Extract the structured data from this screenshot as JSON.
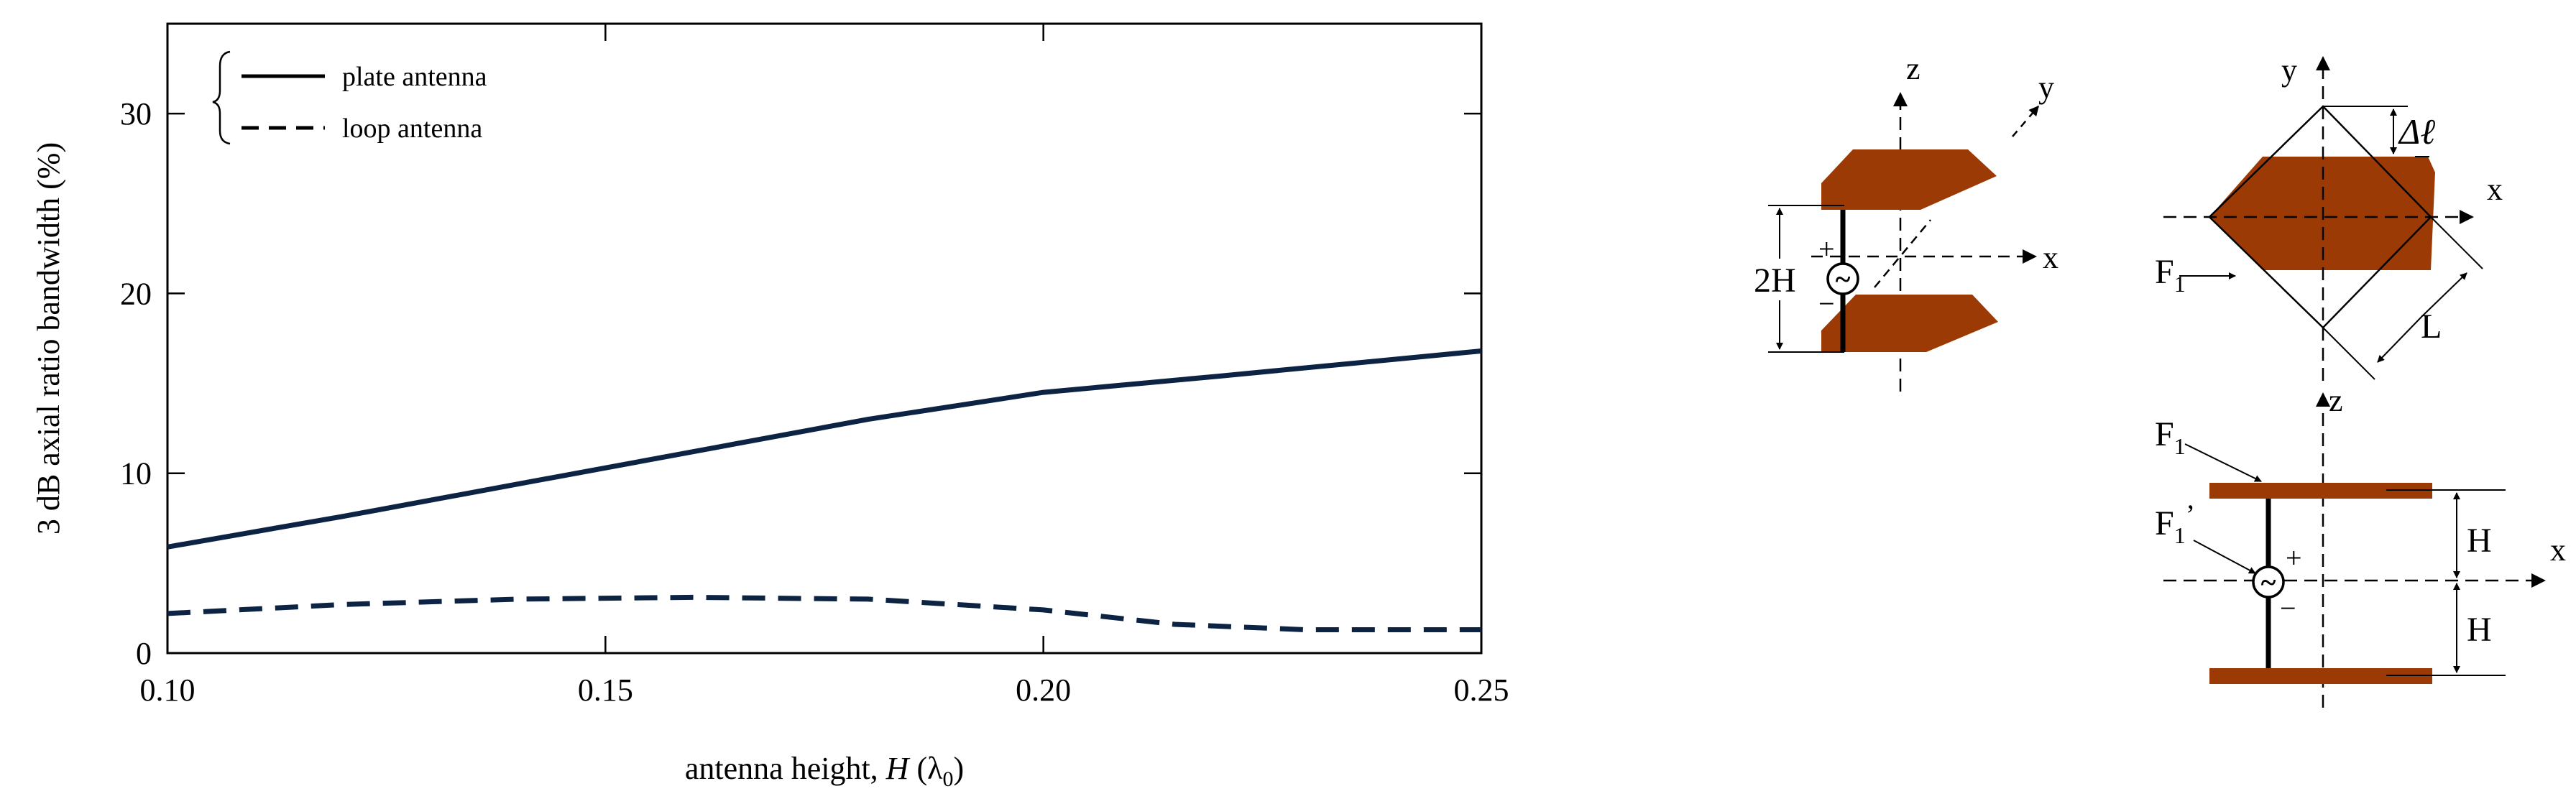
{
  "chart_data": {
    "type": "line",
    "title": "",
    "xlabel": "antenna height, ",
    "xlabel_var": "H",
    "xlabel_unit_open": " (λ",
    "xlabel_unit_sub": "0",
    "xlabel_unit_close": ")",
    "ylabel": "3 dB axial ratio bandwidth (%)",
    "xlim": [
      0.1,
      0.25
    ],
    "ylim": [
      0,
      35
    ],
    "x_ticks": [
      0.1,
      0.15,
      0.2,
      0.25
    ],
    "x_tick_labels": [
      "0.10",
      "0.15",
      "0.20",
      "0.25"
    ],
    "y_ticks": [
      0,
      10,
      20,
      30
    ],
    "y_tick_labels": [
      "0",
      "10",
      "20",
      "30"
    ],
    "legend_position": "top-left",
    "series": [
      {
        "name": "plate antenna",
        "style": "solid",
        "color": "#0d2344",
        "x": [
          0.1,
          0.12,
          0.14,
          0.16,
          0.18,
          0.2,
          0.22,
          0.25
        ],
        "y": [
          5.9,
          7.6,
          9.4,
          11.2,
          13.0,
          14.5,
          15.4,
          16.8
        ]
      },
      {
        "name": "loop antenna",
        "style": "dashed",
        "color": "#0d2344",
        "x": [
          0.1,
          0.12,
          0.14,
          0.16,
          0.18,
          0.2,
          0.215,
          0.23,
          0.25
        ],
        "y": [
          2.2,
          2.7,
          3.0,
          3.1,
          3.0,
          2.4,
          1.6,
          1.3,
          1.3
        ]
      }
    ]
  },
  "diagram": {
    "fill_color": "#9b3a04",
    "left_view": {
      "axis_z": "z",
      "axis_y": "y",
      "axis_x": "x",
      "height_label": "2H",
      "plus_sign": "+",
      "minus_sign": "−",
      "source_symbol": "~"
    },
    "top_view": {
      "axis_y": "y",
      "axis_x": "x",
      "delta_label": "Δℓ",
      "length_label": "L",
      "feed_label": "F",
      "feed_sub": "1"
    },
    "side_view": {
      "axis_z": "z",
      "axis_x": "x",
      "feed_label": "F",
      "feed_sub": "1",
      "feed2_label": "F",
      "feed2_sub": "1",
      "feed2_prime": "’",
      "h_top": "H",
      "h_bottom": "H",
      "plus_sign": "+",
      "minus_sign": "−",
      "source_symbol": "~"
    }
  }
}
